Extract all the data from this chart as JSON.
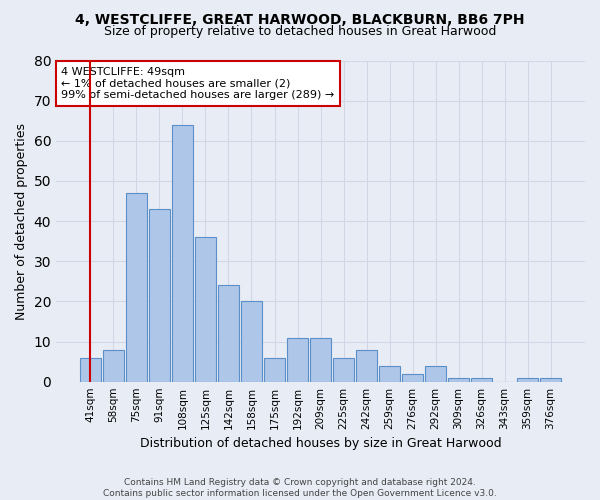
{
  "title1": "4, WESTCLIFFE, GREAT HARWOOD, BLACKBURN, BB6 7PH",
  "title2": "Size of property relative to detached houses in Great Harwood",
  "xlabel": "Distribution of detached houses by size in Great Harwood",
  "ylabel": "Number of detached properties",
  "categories": [
    "41sqm",
    "58sqm",
    "75sqm",
    "91sqm",
    "108sqm",
    "125sqm",
    "142sqm",
    "158sqm",
    "175sqm",
    "192sqm",
    "209sqm",
    "225sqm",
    "242sqm",
    "259sqm",
    "276sqm",
    "292sqm",
    "309sqm",
    "326sqm",
    "343sqm",
    "359sqm",
    "376sqm"
  ],
  "values": [
    6,
    8,
    47,
    43,
    64,
    36,
    24,
    20,
    6,
    11,
    11,
    6,
    8,
    4,
    2,
    4,
    1,
    1,
    0,
    1,
    1
  ],
  "bar_color": "#aec6e8",
  "bar_edge_color": "#5b8fc9",
  "annotation_text": "4 WESTCLIFFE: 49sqm\n← 1% of detached houses are smaller (2)\n99% of semi-detached houses are larger (289) →",
  "annotation_box_color": "#ffffff",
  "annotation_box_edge_color": "#cc0000",
  "vline_color": "#cc0000",
  "ylim": [
    0,
    80
  ],
  "yticks": [
    0,
    10,
    20,
    30,
    40,
    50,
    60,
    70,
    80
  ],
  "grid_color": "#d0d8e8",
  "bg_color": "#e8edf5",
  "footer": "Contains HM Land Registry data © Crown copyright and database right 2024.\nContains public sector information licensed under the Open Government Licence v3.0."
}
